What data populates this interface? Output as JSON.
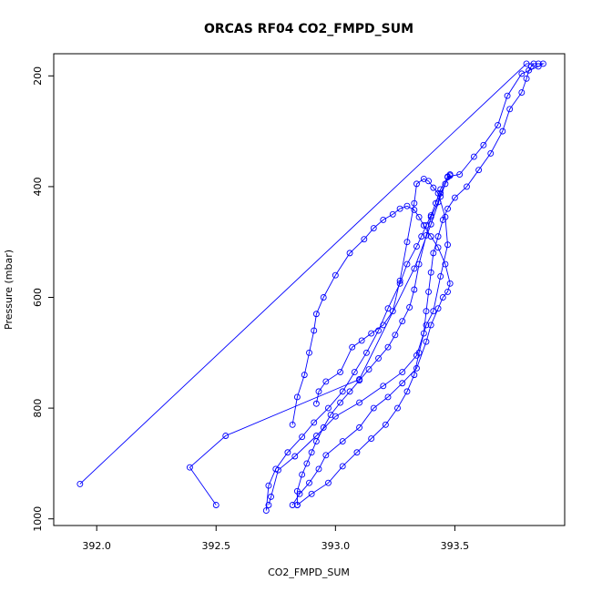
{
  "chart_data": {
    "type": "line",
    "title": "ORCAS RF04 CO2_FMPD_SUM",
    "xlabel": "CO2_FMPD_SUM",
    "ylabel": "Pressure (mbar)",
    "xlim": [
      391.82,
      393.96
    ],
    "ylim": [
      1012,
      160
    ],
    "y_axis_inverted": true,
    "x_ticks": [
      392.0,
      392.5,
      393.0,
      393.5
    ],
    "x_tick_labels": [
      "392.0",
      "392.5",
      "393.0",
      "393.5"
    ],
    "y_ticks": [
      200,
      400,
      600,
      800,
      1000
    ],
    "y_tick_labels": [
      "200",
      "400",
      "600",
      "800",
      "1000"
    ],
    "grid": false,
    "series": [
      {
        "color": "#0000ff",
        "marker": "open-circle",
        "x": [
          391.93,
          393.8,
          393.85,
          393.87,
          393.85,
          393.78,
          393.72,
          393.68,
          393.62,
          393.58,
          393.52,
          393.47,
          393.48,
          393.44,
          393.43,
          393.4,
          393.38,
          393.35,
          393.33,
          393.31,
          393.28,
          393.25,
          393.22,
          393.18,
          393.14,
          393.1,
          393.06,
          393.02,
          392.98,
          392.95,
          392.92,
          392.9,
          392.88,
          392.86,
          392.84,
          392.84
        ],
        "y": [
          937,
          178,
          178,
          178,
          183,
          196,
          236,
          289,
          325,
          346,
          378,
          382,
          378,
          412,
          428,
          455,
          488,
          540,
          586,
          618,
          643,
          668,
          690,
          710,
          730,
          750,
          770,
          790,
          812,
          835,
          860,
          880,
          900,
          920,
          950,
          975
        ]
      },
      {
        "color": "#0000ff",
        "marker": "open-circle",
        "x": [
          392.5,
          392.39,
          392.54,
          393.1,
          393.33,
          393.4,
          393.44,
          393.46,
          393.48,
          393.47,
          393.44,
          393.42,
          393.4,
          393.38,
          393.36,
          393.34,
          393.3,
          393.27,
          393.22,
          393.18,
          393.13,
          393.08,
          393.03,
          392.97,
          392.91,
          392.86,
          392.8,
          392.75,
          392.72,
          392.71
        ],
        "y": [
          975,
          907,
          850,
          748,
          548,
          468,
          418,
          395,
          380,
          383,
          405,
          430,
          452,
          470,
          490,
          508,
          540,
          575,
          620,
          660,
          700,
          735,
          770,
          800,
          826,
          852,
          880,
          910,
          940,
          985
        ]
      },
      {
        "color": "#0000ff",
        "marker": "open-circle",
        "x": [
          392.72,
          392.73,
          392.76,
          392.83,
          392.92,
          393.0,
          393.1,
          393.2,
          393.28,
          393.34,
          393.38,
          393.41,
          393.44,
          393.47,
          393.46,
          393.43,
          393.41,
          393.39,
          393.37,
          393.34,
          393.33,
          393.3,
          393.27,
          393.24,
          393.2,
          393.15,
          393.11,
          393.07,
          393.02,
          392.96,
          392.93,
          392.92
        ],
        "y": [
          975,
          960,
          912,
          887,
          850,
          815,
          790,
          760,
          735,
          705,
          650,
          625,
          562,
          505,
          455,
          412,
          402,
          390,
          386,
          395,
          430,
          500,
          570,
          625,
          650,
          665,
          678,
          690,
          735,
          752,
          770,
          792
        ]
      },
      {
        "color": "#0000ff",
        "marker": "open-circle",
        "x": [
          392.82,
          392.85,
          392.89,
          392.93,
          392.96,
          393.03,
          393.1,
          393.16,
          393.22,
          393.28,
          393.34,
          393.38,
          393.4,
          393.43,
          393.45,
          393.47,
          393.48,
          393.46,
          393.43,
          393.4,
          393.37,
          393.35,
          393.33,
          393.3,
          393.27,
          393.24,
          393.2,
          393.16,
          393.12,
          393.06,
          393.0,
          392.95,
          392.92,
          392.91,
          392.89,
          392.87,
          392.84,
          392.82
        ],
        "y": [
          975,
          955,
          935,
          910,
          885,
          860,
          835,
          800,
          780,
          755,
          728,
          680,
          650,
          620,
          600,
          590,
          575,
          540,
          510,
          490,
          470,
          455,
          442,
          435,
          440,
          450,
          460,
          475,
          495,
          520,
          560,
          600,
          630,
          660,
          700,
          740,
          780,
          830
        ]
      },
      {
        "color": "#0000ff",
        "marker": "open-circle",
        "x": [
          392.84,
          392.9,
          392.97,
          393.03,
          393.09,
          393.15,
          393.21,
          393.26,
          393.3,
          393.33,
          393.35,
          393.37,
          393.38,
          393.39,
          393.4,
          393.41,
          393.43,
          393.45,
          393.47,
          393.5,
          393.55,
          393.6,
          393.65,
          393.7,
          393.73,
          393.78,
          393.8,
          393.81,
          393.82,
          393.83
        ],
        "y": [
          975,
          955,
          935,
          905,
          880,
          855,
          830,
          800,
          770,
          740,
          700,
          665,
          625,
          590,
          555,
          520,
          490,
          460,
          440,
          420,
          400,
          370,
          340,
          300,
          260,
          230,
          205,
          190,
          183,
          178
        ]
      }
    ]
  }
}
